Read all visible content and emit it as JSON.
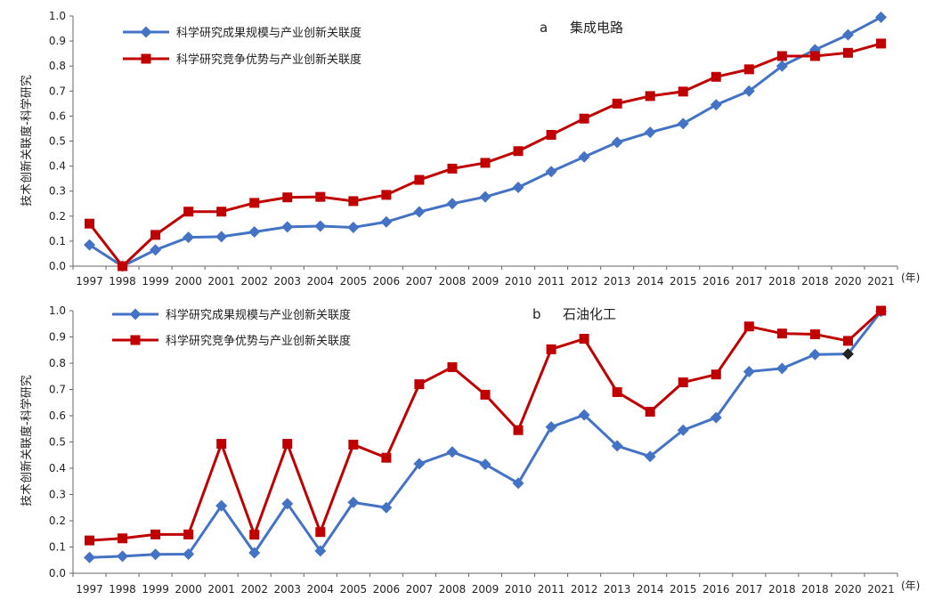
{
  "chart_data": [
    {
      "type": "line",
      "title": "集成电路",
      "panel_letter": "a",
      "ylabel": "技术创新关联度-科学研究",
      "unit_label": "(年)",
      "ylim": [
        0,
        1
      ],
      "y_ticks": [
        "0.0",
        "0.1",
        "0.2",
        "0.3",
        "0.4",
        "0.5",
        "0.6",
        "0.7",
        "0.8",
        "0.9",
        "1.0"
      ],
      "categories": [
        "1997",
        "1998",
        "1999",
        "2000",
        "2001",
        "2002",
        "2003",
        "2004",
        "2005",
        "2006",
        "2007",
        "2008",
        "2009",
        "2010",
        "2011",
        "2012",
        "2013",
        "2014",
        "2015",
        "2016",
        "2017",
        "2018",
        "2018",
        "2020",
        "2021"
      ],
      "grid": false,
      "legend_position": "top-left",
      "series": [
        {
          "name": "科学研究成果规模与产业创新关联度",
          "color": "#4472c4",
          "marker": "diamond",
          "values": [
            0.085,
            0.0,
            0.065,
            0.115,
            0.118,
            0.137,
            0.157,
            0.16,
            0.155,
            0.177,
            0.217,
            0.25,
            0.277,
            0.315,
            0.378,
            0.437,
            0.495,
            0.535,
            0.57,
            0.645,
            0.7,
            0.8,
            0.865,
            0.925,
            0.995
          ]
        },
        {
          "name": "科学研究竞争优势与产业创新关联度",
          "color": "#c00000",
          "marker": "square",
          "values": [
            0.17,
            0.0,
            0.125,
            0.218,
            0.218,
            0.253,
            0.275,
            0.277,
            0.26,
            0.285,
            0.345,
            0.39,
            0.413,
            0.46,
            0.525,
            0.59,
            0.65,
            0.68,
            0.698,
            0.757,
            0.787,
            0.84,
            0.84,
            0.853,
            0.89
          ]
        }
      ]
    },
    {
      "type": "line",
      "title": "石油化工",
      "panel_letter": "b",
      "ylabel": "技术创新关联度-科学研究",
      "unit_label": "(年)",
      "ylim": [
        0,
        1
      ],
      "y_ticks": [
        "0.0",
        "0.1",
        "0.2",
        "0.3",
        "0.4",
        "0.5",
        "0.6",
        "0.7",
        "0.8",
        "0.9",
        "1.0"
      ],
      "categories": [
        "1997",
        "1998",
        "1999",
        "2000",
        "2001",
        "2002",
        "2003",
        "2004",
        "2005",
        "2006",
        "2007",
        "2008",
        "2009",
        "2010",
        "2011",
        "2012",
        "2013",
        "2014",
        "2015",
        "2016",
        "2017",
        "2018",
        "2018",
        "2020",
        "2021"
      ],
      "grid": false,
      "legend_position": "top-left",
      "series": [
        {
          "name": "科学研究成果规模与产业创新关联度",
          "color": "#4472c4",
          "marker": "diamond",
          "highlight_marker_index": 23,
          "highlight_marker_color": "#222222",
          "values": [
            0.06,
            0.065,
            0.072,
            0.073,
            0.257,
            0.078,
            0.265,
            0.085,
            0.27,
            0.25,
            0.417,
            0.462,
            0.415,
            0.343,
            0.557,
            0.603,
            0.485,
            0.445,
            0.545,
            0.593,
            0.768,
            0.78,
            0.833,
            0.835,
            0.997
          ]
        },
        {
          "name": "科学研究竞争优势与产业创新关联度",
          "color": "#c00000",
          "marker": "square",
          "values": [
            0.125,
            0.133,
            0.148,
            0.148,
            0.493,
            0.147,
            0.493,
            0.157,
            0.49,
            0.44,
            0.72,
            0.785,
            0.68,
            0.545,
            0.853,
            0.893,
            0.69,
            0.615,
            0.727,
            0.757,
            0.94,
            0.913,
            0.91,
            0.885,
            1.0
          ]
        }
      ]
    }
  ]
}
